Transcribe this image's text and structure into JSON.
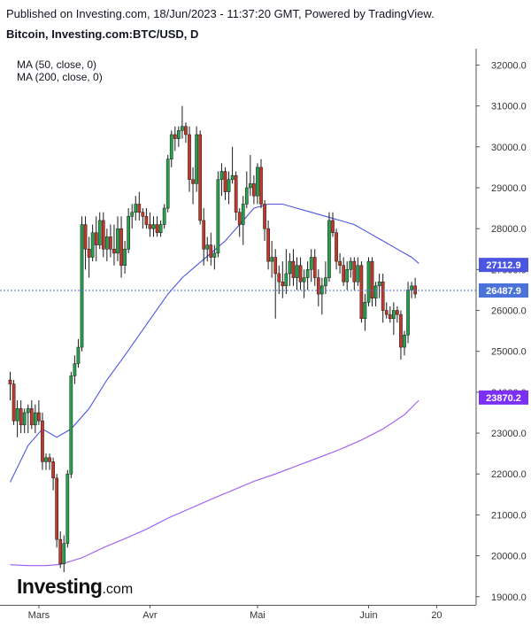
{
  "header": {
    "publish_line": "Published on Investing.com, 18/Jun/2023 - 11:37:20 GMT, Powered by TradingView.",
    "symbol_line": "Bitcoin, Investing.com:BTC/USD, D"
  },
  "legend": {
    "ma50": "MA (50, close, 0)",
    "ma200": "MA (200, close, 0)"
  },
  "logo": {
    "main": "Investing",
    "suffix": ".com"
  },
  "colors": {
    "up": "#26a04a",
    "down": "#c0392b",
    "ma50": "#4a56e2",
    "ma200": "#9b59f5",
    "last_price": "#4a72d9",
    "ma200_label": "#7b2ff7",
    "grid": "#e5e5e5",
    "axis_text": "#333333"
  },
  "chart_data": {
    "type": "candlestick",
    "title": "Bitcoin, Investing.com:BTC/USD, D",
    "ylim": [
      18800,
      32400
    ],
    "y_ticks": [
      "19000.0",
      "20000.0",
      "21000.0",
      "22000.0",
      "23000.0",
      "24000.0",
      "25000.0",
      "26000.0",
      "27000.0",
      "28000.0",
      "29000.0",
      "30000.0",
      "31000.0",
      "32000.0"
    ],
    "x_ticks": [
      {
        "label": "Mars",
        "index": 8
      },
      {
        "label": "Avr",
        "index": 39
      },
      {
        "label": "Mai",
        "index": 69
      },
      {
        "label": "Juin",
        "index": 100
      },
      {
        "label": "20",
        "index": 119
      }
    ],
    "grid": false,
    "price_labels": {
      "ma50_last": "27112.9",
      "last_price": "26487.9",
      "ma200_last": "23870.2"
    },
    "last_price": 26487.9,
    "series": [
      {
        "name": "Bitcoin",
        "ohlc": [
          [
            24300,
            24500,
            23800,
            24200
          ],
          [
            24200,
            24300,
            23200,
            23300
          ],
          [
            23300,
            23800,
            22900,
            23600
          ],
          [
            23600,
            23800,
            23000,
            23200
          ],
          [
            23200,
            23600,
            23000,
            23500
          ],
          [
            23500,
            23700,
            23000,
            23600
          ],
          [
            23600,
            23800,
            23100,
            23200
          ],
          [
            23200,
            23700,
            23000,
            23500
          ],
          [
            23500,
            23800,
            23200,
            23300
          ],
          [
            23300,
            23500,
            22100,
            22300
          ],
          [
            22300,
            22500,
            22100,
            22400
          ],
          [
            22400,
            22500,
            22100,
            22300
          ],
          [
            22300,
            22400,
            21600,
            21900
          ],
          [
            21900,
            22000,
            20200,
            20400
          ],
          [
            20400,
            20600,
            19700,
            19800
          ],
          [
            19800,
            20500,
            19600,
            20300
          ],
          [
            20300,
            22100,
            20200,
            22000
          ],
          [
            22000,
            24500,
            21900,
            24400
          ],
          [
            24400,
            24900,
            24200,
            24700
          ],
          [
            24700,
            25300,
            24600,
            25100
          ],
          [
            25100,
            28300,
            25000,
            28100
          ],
          [
            28100,
            28300,
            27000,
            27500
          ],
          [
            27500,
            27800,
            26800,
            27300
          ],
          [
            27300,
            28100,
            27200,
            27900
          ],
          [
            27900,
            28300,
            27200,
            27600
          ],
          [
            27600,
            28400,
            27500,
            28200
          ],
          [
            28200,
            28400,
            27300,
            27500
          ],
          [
            27500,
            28000,
            27200,
            27800
          ],
          [
            27800,
            28100,
            27300,
            27500
          ],
          [
            27500,
            28100,
            27100,
            27400
          ],
          [
            27400,
            28300,
            27200,
            28000
          ],
          [
            28000,
            28300,
            26800,
            27100
          ],
          [
            27100,
            27700,
            26900,
            27500
          ],
          [
            27500,
            28500,
            27400,
            28300
          ],
          [
            28300,
            28600,
            28000,
            28400
          ],
          [
            28400,
            28800,
            28200,
            28600
          ],
          [
            28600,
            28900,
            28200,
            28400
          ],
          [
            28400,
            28500,
            28000,
            28300
          ],
          [
            28300,
            28500,
            28000,
            28100
          ],
          [
            28100,
            28400,
            27800,
            28000
          ],
          [
            28000,
            28300,
            27800,
            28100
          ],
          [
            28100,
            28300,
            27800,
            27900
          ],
          [
            27900,
            28200,
            27800,
            28100
          ],
          [
            28100,
            28600,
            28000,
            28500
          ],
          [
            28500,
            29800,
            28400,
            29700
          ],
          [
            29700,
            30400,
            29500,
            30300
          ],
          [
            30300,
            30500,
            29900,
            30200
          ],
          [
            30200,
            30500,
            30000,
            30400
          ],
          [
            30400,
            31000,
            30200,
            30500
          ],
          [
            30500,
            30600,
            30100,
            30300
          ],
          [
            30300,
            30500,
            28900,
            29200
          ],
          [
            29200,
            29500,
            28600,
            29100
          ],
          [
            29100,
            30500,
            28900,
            30300
          ],
          [
            30300,
            30400,
            28100,
            28200
          ],
          [
            28200,
            28500,
            27100,
            27500
          ],
          [
            27500,
            27800,
            27200,
            27600
          ],
          [
            27600,
            27900,
            27100,
            27300
          ],
          [
            27300,
            27600,
            27000,
            27400
          ],
          [
            27400,
            29400,
            27300,
            29200
          ],
          [
            29200,
            29600,
            28800,
            29400
          ],
          [
            29400,
            29500,
            28700,
            28900
          ],
          [
            28900,
            29400,
            28600,
            29200
          ],
          [
            29200,
            30000,
            29100,
            29300
          ],
          [
            29300,
            29400,
            28200,
            28400
          ],
          [
            28400,
            28500,
            27800,
            28100
          ],
          [
            28100,
            28800,
            27600,
            28600
          ],
          [
            28600,
            29400,
            28500,
            29000
          ],
          [
            29000,
            29800,
            28800,
            29100
          ],
          [
            29100,
            29300,
            28600,
            28800
          ],
          [
            28800,
            29600,
            28600,
            29500
          ],
          [
            29500,
            29700,
            28500,
            28600
          ],
          [
            28600,
            28700,
            27700,
            28000
          ],
          [
            28000,
            28200,
            27000,
            27200
          ],
          [
            27200,
            27700,
            26800,
            27300
          ],
          [
            27300,
            27500,
            25800,
            26900
          ],
          [
            26900,
            27100,
            26400,
            26700
          ],
          [
            26700,
            27200,
            26300,
            26600
          ],
          [
            26600,
            27500,
            26400,
            26900
          ],
          [
            26900,
            27400,
            26600,
            27200
          ],
          [
            27200,
            27500,
            26600,
            26800
          ],
          [
            26800,
            27300,
            26500,
            27100
          ],
          [
            27100,
            27300,
            26500,
            26700
          ],
          [
            26700,
            27000,
            26300,
            26800
          ],
          [
            26800,
            27200,
            26500,
            27000
          ],
          [
            27000,
            27500,
            26700,
            27300
          ],
          [
            27300,
            27500,
            26600,
            26800
          ],
          [
            26800,
            27000,
            26100,
            26400
          ],
          [
            26400,
            26800,
            25900,
            26600
          ],
          [
            26600,
            27200,
            26400,
            26800
          ],
          [
            26800,
            28400,
            26700,
            28200
          ],
          [
            28200,
            28400,
            27800,
            27900
          ],
          [
            27900,
            28000,
            27000,
            27200
          ],
          [
            27200,
            27400,
            26900,
            27100
          ],
          [
            27100,
            27300,
            26600,
            26700
          ],
          [
            26700,
            27200,
            26500,
            27000
          ],
          [
            27000,
            27300,
            26800,
            27200
          ],
          [
            27200,
            27300,
            26500,
            26700
          ],
          [
            26700,
            27300,
            26600,
            27100
          ],
          [
            27100,
            27200,
            25700,
            25800
          ],
          [
            25800,
            26400,
            25500,
            26200
          ],
          [
            26200,
            27300,
            26100,
            27200
          ],
          [
            27200,
            27300,
            26100,
            26300
          ],
          [
            26300,
            26700,
            26100,
            26600
          ],
          [
            26600,
            26900,
            26300,
            26700
          ],
          [
            26700,
            26900,
            25700,
            26000
          ],
          [
            26000,
            26200,
            25800,
            25900
          ],
          [
            25900,
            26100,
            25700,
            25800
          ],
          [
            25800,
            26200,
            25400,
            26000
          ],
          [
            26000,
            26100,
            25700,
            25900
          ],
          [
            25900,
            26000,
            24800,
            25100
          ],
          [
            25100,
            25500,
            24900,
            25400
          ],
          [
            25400,
            26700,
            25200,
            26500
          ],
          [
            26500,
            26700,
            26300,
            26600
          ],
          [
            26600,
            26800,
            26300,
            26400
          ]
        ]
      },
      {
        "name": "MA (50, close, 0)",
        "points": [
          [
            0,
            21800
          ],
          [
            5,
            22700
          ],
          [
            9,
            23100
          ],
          [
            13,
            22900
          ],
          [
            17,
            23100
          ],
          [
            22,
            23600
          ],
          [
            27,
            24300
          ],
          [
            32,
            24900
          ],
          [
            36,
            25400
          ],
          [
            40,
            25900
          ],
          [
            44,
            26400
          ],
          [
            48,
            26800
          ],
          [
            52,
            27100
          ],
          [
            56,
            27400
          ],
          [
            60,
            27700
          ],
          [
            64,
            28100
          ],
          [
            68,
            28500
          ],
          [
            72,
            28600
          ],
          [
            76,
            28600
          ],
          [
            80,
            28500
          ],
          [
            84,
            28400
          ],
          [
            88,
            28300
          ],
          [
            92,
            28200
          ],
          [
            96,
            28100
          ],
          [
            100,
            27900
          ],
          [
            104,
            27700
          ],
          [
            108,
            27500
          ],
          [
            112,
            27300
          ],
          [
            114,
            27150
          ]
        ]
      },
      {
        "name": "MA (200, close, 0)",
        "points": [
          [
            0,
            19780
          ],
          [
            5,
            19760
          ],
          [
            10,
            19760
          ],
          [
            14,
            19790
          ],
          [
            20,
            19950
          ],
          [
            26,
            20200
          ],
          [
            32,
            20420
          ],
          [
            38,
            20650
          ],
          [
            44,
            20920
          ],
          [
            50,
            21150
          ],
          [
            56,
            21380
          ],
          [
            62,
            21600
          ],
          [
            68,
            21820
          ],
          [
            74,
            22000
          ],
          [
            80,
            22200
          ],
          [
            86,
            22400
          ],
          [
            92,
            22600
          ],
          [
            98,
            22830
          ],
          [
            104,
            23100
          ],
          [
            110,
            23450
          ],
          [
            114,
            23800
          ]
        ]
      }
    ]
  }
}
